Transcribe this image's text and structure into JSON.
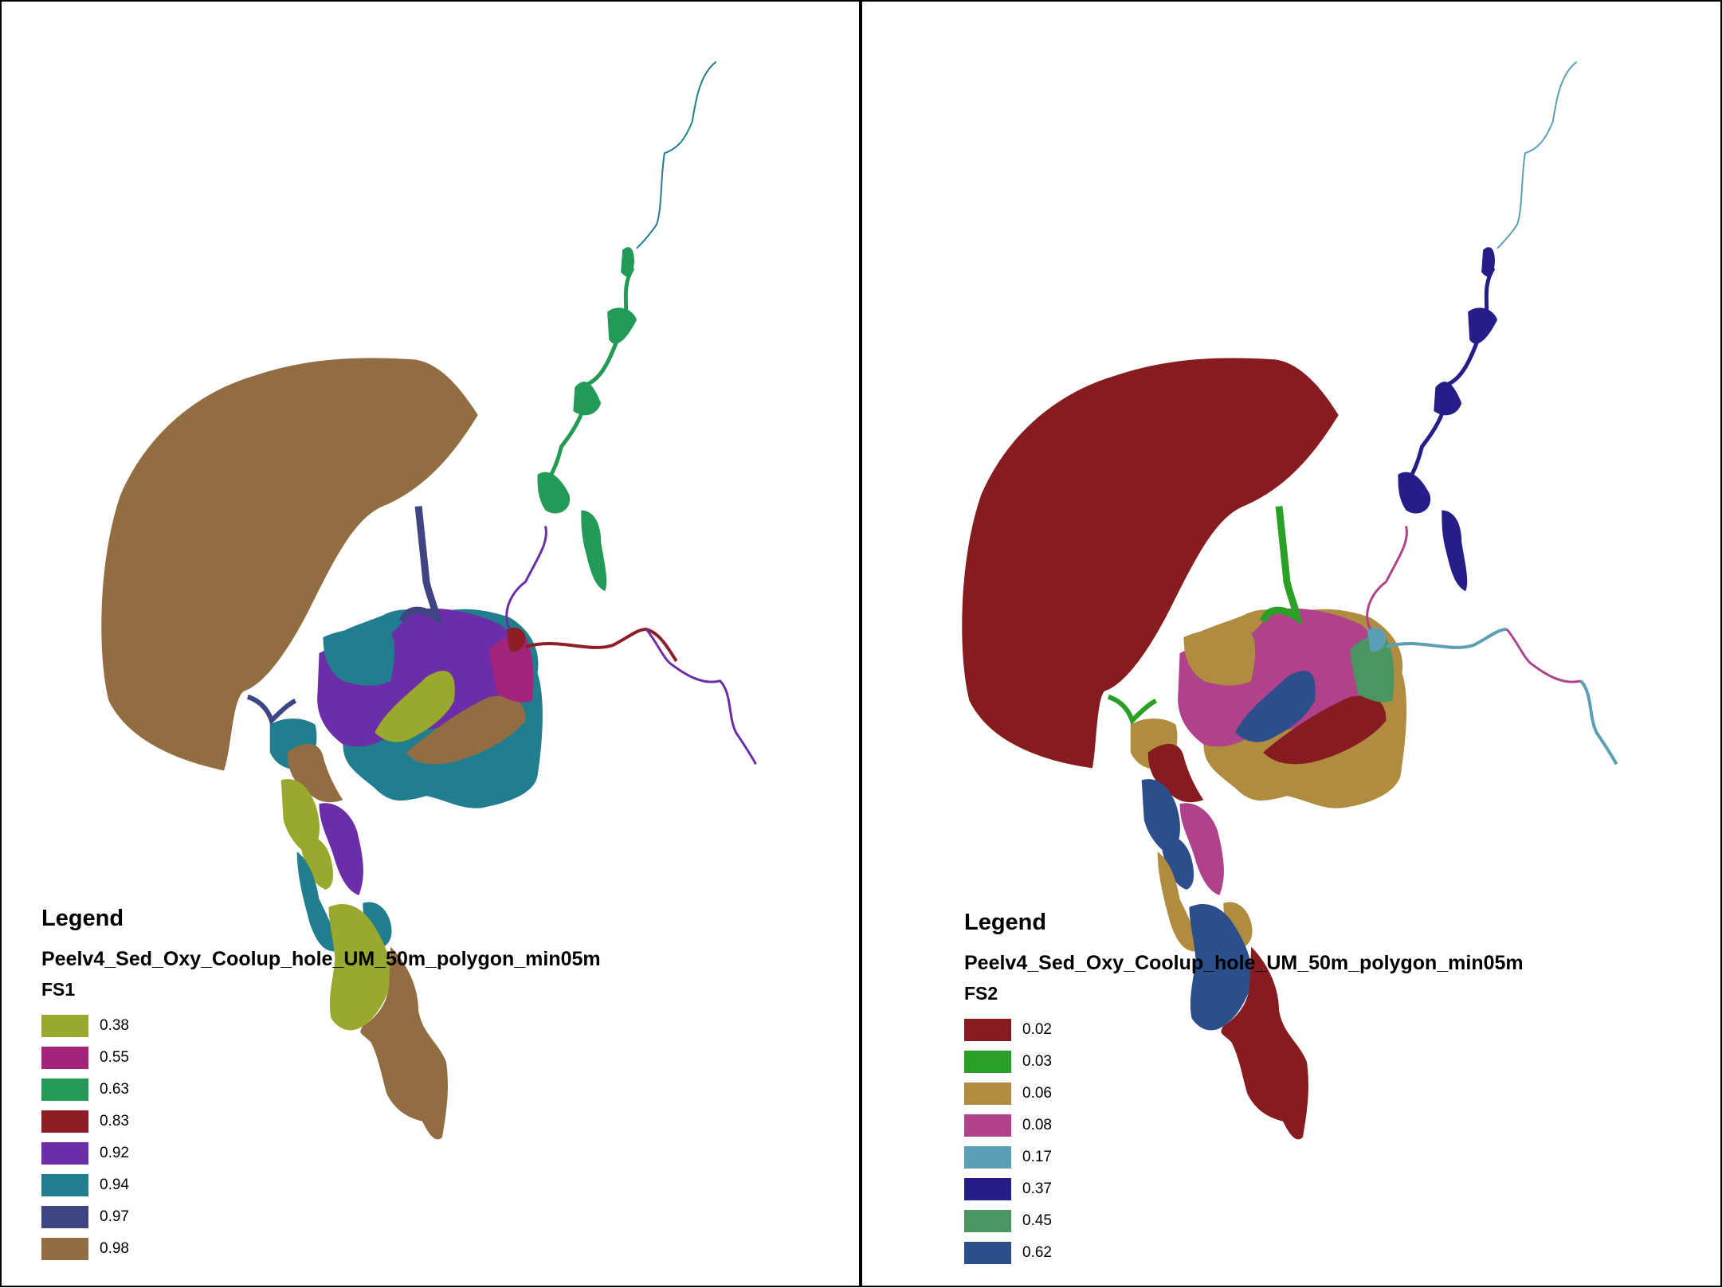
{
  "left_map": {
    "legend_heading": "Legend",
    "layer_name": "Peelv4_Sed_Oxy_Coolup_hole_UM_50m_polygon_min05m",
    "field_name": "FS1",
    "classes": [
      {
        "label": "0.38",
        "color": "#9aa92e"
      },
      {
        "label": "0.55",
        "color": "#a3247a"
      },
      {
        "label": "0.63",
        "color": "#239b57"
      },
      {
        "label": "0.83",
        "color": "#8f1d26"
      },
      {
        "label": "0.92",
        "color": "#6c2ea8"
      },
      {
        "label": "0.94",
        "color": "#217e8e"
      },
      {
        "label": "0.97",
        "color": "#3f4483"
      },
      {
        "label": "0.98",
        "color": "#936d42"
      }
    ]
  },
  "right_map": {
    "legend_heading": "Legend",
    "layer_name": "Peelv4_Sed_Oxy_Coolup_hole_UM_50m_polygon_min05m",
    "field_name": "FS2",
    "classes": [
      {
        "label": "0.02",
        "color": "#871c20"
      },
      {
        "label": "0.03",
        "color": "#2aa126"
      },
      {
        "label": "0.06",
        "color": "#b08c40"
      },
      {
        "label": "0.08",
        "color": "#b0428c"
      },
      {
        "label": "0.17",
        "color": "#5aa0b4"
      },
      {
        "label": "0.37",
        "color": "#261e88"
      },
      {
        "label": "0.45",
        "color": "#4a9560"
      },
      {
        "label": "0.62",
        "color": "#2a4f8b"
      }
    ]
  }
}
